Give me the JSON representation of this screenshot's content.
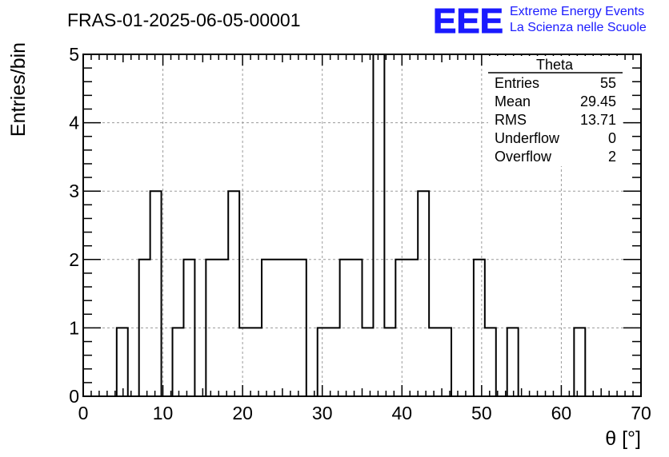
{
  "chart_data": {
    "type": "histogram",
    "title": "FRAS-01-2025-06-05-00001",
    "xlabel": "θ [°]",
    "ylabel": "Entries/bin",
    "xlim": [
      0,
      70
    ],
    "ylim": [
      0,
      5
    ],
    "x_ticks": [
      0,
      10,
      20,
      30,
      40,
      50,
      60,
      70
    ],
    "y_ticks": [
      0,
      1,
      2,
      3,
      4,
      5
    ],
    "grid": true,
    "bin_width": 1.4,
    "bin_edges_start": 0,
    "values": [
      0,
      0,
      0,
      1,
      0,
      2,
      3,
      0,
      1,
      2,
      0,
      2,
      2,
      3,
      1,
      1,
      2,
      2,
      2,
      2,
      0,
      1,
      1,
      2,
      2,
      1,
      5,
      1,
      2,
      2,
      3,
      1,
      1,
      0,
      0,
      2,
      1,
      0,
      1,
      0,
      0,
      0,
      0,
      0,
      1,
      0,
      0,
      0,
      0,
      0
    ],
    "stats_box": {
      "header": "Theta",
      "placement": "top-right",
      "rows": [
        {
          "label": "Entries",
          "value": "55"
        },
        {
          "label": "Mean",
          "value": "29.45"
        },
        {
          "label": "RMS",
          "value": "13.71"
        },
        {
          "label": "Underflow",
          "value": "0"
        },
        {
          "label": "Overflow",
          "value": "2"
        }
      ]
    }
  },
  "logo": {
    "mark": "EEE",
    "line1": "Extreme Energy Events",
    "line2": "La Scienza nelle Scuole",
    "color": "#1a1aff"
  },
  "colors": {
    "line": "#000000",
    "grid": "#9a9a9a",
    "background": "#ffffff"
  }
}
